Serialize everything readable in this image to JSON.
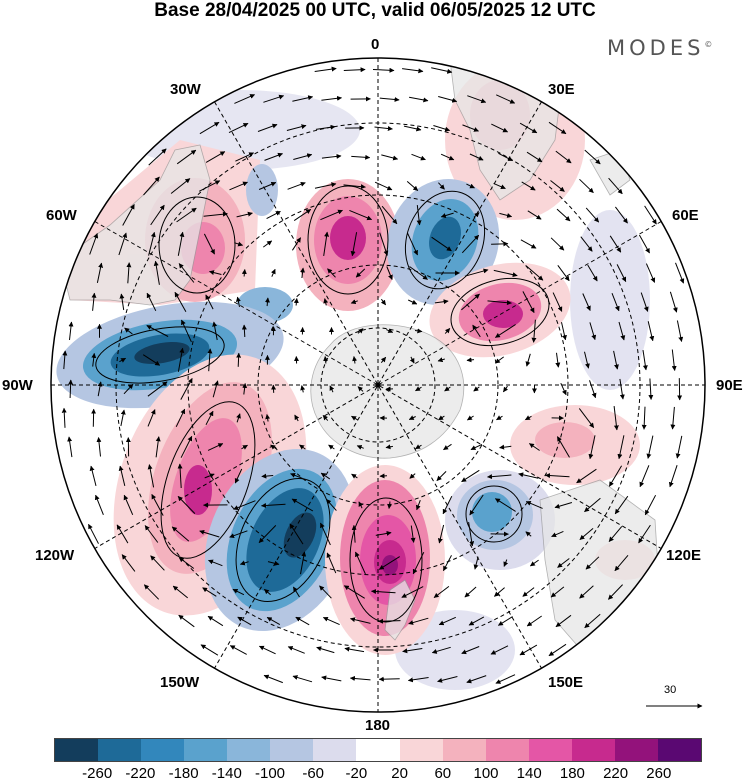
{
  "title": "Base 28/04/2025 00 UTC, valid 06/05/2025 12 UTC",
  "brand": "MODES",
  "brand_mark": "©",
  "lon_labels": {
    "n0": "0",
    "e30": "30E",
    "e60": "60E",
    "e90": "90E",
    "e120": "120E",
    "e150": "150E",
    "s180": "180",
    "w150": "150W",
    "w120": "120W",
    "w90": "90W",
    "w60": "60W",
    "w30": "30W"
  },
  "vector_reference": "30",
  "colorbar": {
    "colors": [
      "#133d5c",
      "#1e6a98",
      "#3287bc",
      "#5aa2cd",
      "#8ab6da",
      "#b5c6e2",
      "#dcdced",
      "#ffffff",
      "#f9d6d8",
      "#f4b2be",
      "#ee85ad",
      "#e456a6",
      "#c72a8e",
      "#93127b",
      "#5a0872"
    ],
    "ticks": [
      "-260",
      "-220",
      "-180",
      "-140",
      "-100",
      "-60",
      "-20",
      "20",
      "60",
      "100",
      "140",
      "180",
      "220",
      "260"
    ]
  },
  "anomalies": [
    {
      "name": "south-america-positive-anomaly",
      "color": "#f4b2be",
      "peak": "#ee85ad"
    },
    {
      "name": "south-atlantic-positive-anomaly",
      "color": "#ee85ad",
      "peak": "#c72a8e"
    },
    {
      "name": "south-atlantic-negative-anomaly",
      "color": "#8ab6da",
      "peak": "#1e6a98"
    },
    {
      "name": "indian-ocean-positive-anomaly",
      "color": "#ee85ad",
      "peak": "#c72a8e"
    },
    {
      "name": "bellingshausen-negative-anomaly",
      "color": "#5aa2cd",
      "peak": "#133d5c"
    },
    {
      "name": "pacific-positive-anomaly",
      "color": "#ee85ad",
      "peak": "#c72a8e"
    },
    {
      "name": "ross-sea-negative-anomaly",
      "color": "#3287bc",
      "peak": "#133d5c"
    },
    {
      "name": "new-zealand-positive-anomaly",
      "color": "#e456a6",
      "peak": "#93127b"
    },
    {
      "name": "tasman-negative-anomaly",
      "color": "#8ab6da",
      "peak": "#3287bc"
    },
    {
      "name": "australia-positive-anomaly",
      "color": "#f9d6d8",
      "peak": "#f4b2be"
    }
  ]
}
